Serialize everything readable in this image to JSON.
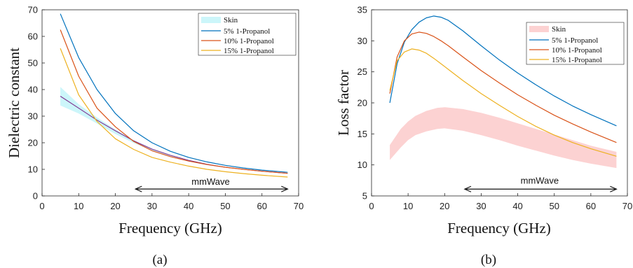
{
  "chart_data": [
    {
      "type": "line",
      "ylabel": "Dielectric constant",
      "xlabel": "Frequency (GHz)",
      "caption": "(a)",
      "xlim": [
        0,
        70
      ],
      "ylim": [
        0,
        70
      ],
      "xticks": [
        0,
        10,
        20,
        30,
        40,
        50,
        60,
        70
      ],
      "yticks": [
        0,
        10,
        20,
        30,
        40,
        50,
        60,
        70
      ],
      "legend_position": "top-right",
      "band": {
        "name": "Skin",
        "color": "#ccf6fa",
        "x": [
          5,
          10,
          15,
          20,
          25,
          30,
          35,
          40,
          45,
          50,
          55,
          60,
          67
        ],
        "upper": [
          41,
          34.5,
          29.5,
          25,
          21,
          17.8,
          15.4,
          13.5,
          12,
          10.9,
          10,
          9.3,
          8.6
        ],
        "lower": [
          34,
          31,
          27.2,
          23.3,
          19.9,
          17.1,
          15,
          13.3,
          11.9,
          10.8,
          10,
          9.3,
          8.5
        ],
        "midline": [
          37.5,
          33,
          28.5,
          24.5,
          20.7,
          17.6,
          15.3,
          13.4,
          11.9,
          10.8,
          10,
          9.3,
          8.5
        ],
        "midline_color": "#7e2f8e"
      },
      "series": [
        {
          "name": "5% 1-Propanol",
          "color": "#0072bd",
          "x": [
            5,
            10,
            15,
            20,
            25,
            30,
            35,
            40,
            45,
            50,
            55,
            60,
            67
          ],
          "values": [
            68.5,
            52,
            40,
            31,
            24.5,
            20,
            16.8,
            14.5,
            12.8,
            11.5,
            10.5,
            9.7,
            8.9
          ]
        },
        {
          "name": "10% 1-Propanol",
          "color": "#d95319",
          "x": [
            5,
            10,
            15,
            20,
            25,
            30,
            35,
            40,
            45,
            50,
            55,
            60,
            67
          ],
          "values": [
            62.5,
            45,
            33,
            26,
            20.5,
            17,
            14.8,
            13.1,
            11.8,
            10.8,
            10,
            9.3,
            8.5
          ]
        },
        {
          "name": "15% 1-Propanol",
          "color": "#edb120",
          "x": [
            5,
            10,
            15,
            20,
            25,
            30,
            35,
            40,
            45,
            50,
            55,
            60,
            67
          ],
          "values": [
            55.5,
            38,
            28,
            21.5,
            17.5,
            14.5,
            12.7,
            11.2,
            10,
            9.1,
            8.4,
            7.8,
            7.1
          ]
        }
      ],
      "annotation": {
        "text": "mmWave",
        "x_from": 25.5,
        "x_to": 67,
        "y": 2.6,
        "text_x": 46,
        "text_y": 3.2
      }
    },
    {
      "type": "line",
      "ylabel": "Loss factor",
      "xlabel": "Frequency (GHz)",
      "caption": "(b)",
      "xlim": [
        0,
        70
      ],
      "ylim": [
        5,
        35
      ],
      "xticks": [
        0,
        10,
        20,
        30,
        40,
        50,
        60,
        70
      ],
      "yticks": [
        5,
        10,
        15,
        20,
        25,
        30,
        35
      ],
      "legend_position": "top-right",
      "band": {
        "name": "Skin",
        "color": "#fcd2d2",
        "x": [
          5,
          8,
          10,
          12,
          15,
          18,
          20,
          25,
          30,
          35,
          40,
          45,
          50,
          55,
          60,
          67
        ],
        "upper": [
          13.2,
          15.8,
          17,
          17.9,
          18.7,
          19.2,
          19.3,
          19,
          18.4,
          17.6,
          16.7,
          15.8,
          14.9,
          14,
          13.1,
          12.1
        ],
        "lower": [
          10.8,
          12.8,
          14,
          14.8,
          15.4,
          15.8,
          15.9,
          15.5,
          14.8,
          14,
          13.1,
          12.3,
          11.5,
          10.8,
          10.2,
          9.5
        ]
      },
      "series": [
        {
          "name": "5% 1-Propanol",
          "color": "#0072bd",
          "x": [
            5,
            7,
            9,
            11,
            13,
            15,
            17,
            19,
            21,
            25,
            30,
            35,
            40,
            45,
            50,
            55,
            60,
            67
          ],
          "values": [
            20,
            26.3,
            29.8,
            31.8,
            33,
            33.7,
            34,
            33.8,
            33.3,
            31.6,
            29.2,
            26.9,
            24.8,
            22.9,
            21.1,
            19.5,
            18.1,
            16.3
          ]
        },
        {
          "name": "10% 1-Propanol",
          "color": "#d95319",
          "x": [
            5,
            7,
            9,
            11,
            13,
            15,
            17,
            19,
            21,
            25,
            30,
            35,
            40,
            45,
            50,
            55,
            60,
            67
          ],
          "values": [
            21.5,
            27.4,
            30,
            31.1,
            31.4,
            31.2,
            30.7,
            30,
            29.2,
            27.4,
            25.2,
            23.2,
            21.3,
            19.6,
            18,
            16.6,
            15.3,
            13.6
          ]
        },
        {
          "name": "15% 1-Propanol",
          "color": "#edb120",
          "x": [
            5,
            7,
            9,
            11,
            13,
            15,
            17,
            19,
            21,
            25,
            30,
            35,
            40,
            45,
            50,
            55,
            60,
            67
          ],
          "values": [
            22,
            26.8,
            28.2,
            28.7,
            28.5,
            28,
            27.2,
            26.3,
            25.4,
            23.6,
            21.5,
            19.6,
            17.8,
            16.2,
            14.8,
            13.6,
            12.6,
            11.4
          ]
        }
      ],
      "annotation": {
        "text": "mmWave",
        "x_from": 25.5,
        "x_to": 67,
        "y": 6.1,
        "text_x": 46,
        "text_y": 6.5
      }
    }
  ]
}
